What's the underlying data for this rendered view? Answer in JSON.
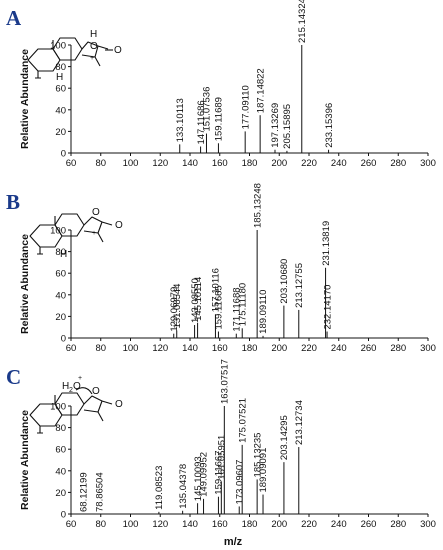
{
  "chart_data": [
    {
      "type": "bar",
      "panel": "A",
      "ylabel": "Relative Abundance",
      "xlim": [
        60,
        300
      ],
      "ylim": [
        0,
        100
      ],
      "x_ticks": [
        60,
        80,
        100,
        120,
        140,
        160,
        180,
        200,
        220,
        240,
        260,
        280,
        300
      ],
      "y_ticks": [
        0,
        20,
        40,
        60,
        80,
        100
      ],
      "peaks": [
        {
          "mz": 133.10113,
          "intensity": 8,
          "label": "133.10113"
        },
        {
          "mz": 147.11686,
          "intensity": 6,
          "label": "147.11686"
        },
        {
          "mz": 151.07536,
          "intensity": 18,
          "label": "151.07536"
        },
        {
          "mz": 159.11689,
          "intensity": 9,
          "label": "159.11689"
        },
        {
          "mz": 177.0911,
          "intensity": 20,
          "label": "177.09110"
        },
        {
          "mz": 187.14822,
          "intensity": 35,
          "label": "187.14822"
        },
        {
          "mz": 197.13269,
          "intensity": 3,
          "label": "197.13269"
        },
        {
          "mz": 205.15895,
          "intensity": 2,
          "label": "205.15895"
        },
        {
          "mz": 215.14324,
          "intensity": 100,
          "label": "215.14324"
        },
        {
          "mz": 233.15396,
          "intensity": 3,
          "label": "233.15396"
        }
      ],
      "structure": {
        "atoms": [
          "H",
          "O",
          "+",
          "O",
          "H"
        ]
      }
    },
    {
      "type": "bar",
      "panel": "B",
      "ylabel": "Relative Abundance",
      "xlim": [
        60,
        300
      ],
      "ylim": [
        0,
        100
      ],
      "x_ticks": [
        60,
        80,
        100,
        120,
        140,
        160,
        180,
        200,
        220,
        240,
        260,
        280,
        300
      ],
      "y_ticks": [
        0,
        20,
        40,
        60,
        80,
        100
      ],
      "peaks": [
        {
          "mz": 129.06979,
          "intensity": 4,
          "label": "129.06979"
        },
        {
          "mz": 131.08544,
          "intensity": 7,
          "label": "131.08544"
        },
        {
          "mz": 143.0855,
          "intensity": 12,
          "label": "143.08550"
        },
        {
          "mz": 145.10114,
          "intensity": 14,
          "label": "145.10114"
        },
        {
          "mz": 157.10116,
          "intensity": 22,
          "label": "157.10116"
        },
        {
          "mz": 159.11685,
          "intensity": 6,
          "label": "159.11685"
        },
        {
          "mz": 171.11688,
          "intensity": 4,
          "label": "171.11688"
        },
        {
          "mz": 175.1118,
          "intensity": 9,
          "label": "175.11180"
        },
        {
          "mz": 185.13248,
          "intensity": 100,
          "label": "185.13248"
        },
        {
          "mz": 189.0911,
          "intensity": 2,
          "label": "189.09110"
        },
        {
          "mz": 203.1068,
          "intensity": 30,
          "label": "203.10680"
        },
        {
          "mz": 213.12755,
          "intensity": 26,
          "label": "213.12755"
        },
        {
          "mz": 231.13819,
          "intensity": 65,
          "label": "231.13819"
        },
        {
          "mz": 232.1417,
          "intensity": 6,
          "label": "232.14170"
        }
      ],
      "structure": {
        "atoms": [
          "O",
          "+",
          "O",
          "H"
        ]
      }
    },
    {
      "type": "bar",
      "panel": "C",
      "ylabel": "Relative Abundance",
      "xlabel": "m/z",
      "xlim": [
        60,
        300
      ],
      "ylim": [
        0,
        100
      ],
      "x_ticks": [
        60,
        80,
        100,
        120,
        140,
        160,
        180,
        200,
        220,
        240,
        260,
        280,
        300
      ],
      "y_ticks": [
        0,
        20,
        40,
        60,
        80,
        100
      ],
      "peaks": [
        {
          "mz": 68.12199,
          "intensity": 0,
          "label": "68.12199"
        },
        {
          "mz": 78.86504,
          "intensity": 0,
          "label": "78.86504"
        },
        {
          "mz": 119.08523,
          "intensity": 2,
          "label": "119.08523"
        },
        {
          "mz": 135.04378,
          "intensity": 3,
          "label": "135.04378"
        },
        {
          "mz": 145.10093,
          "intensity": 10,
          "label": "145.10093"
        },
        {
          "mz": 149.09952,
          "intensity": 14,
          "label": "149.09952"
        },
        {
          "mz": 159.11667,
          "intensity": 16,
          "label": "159.11667"
        },
        {
          "mz": 161.05951,
          "intensity": 30,
          "label": "161.05951"
        },
        {
          "mz": 163.07517,
          "intensity": 100,
          "label": "163.07517"
        },
        {
          "mz": 173.09607,
          "intensity": 7,
          "label": "173.09607"
        },
        {
          "mz": 175.07521,
          "intensity": 64,
          "label": "175.07521"
        },
        {
          "mz": 185.13235,
          "intensity": 32,
          "label": "185.13235"
        },
        {
          "mz": 189.09091,
          "intensity": 18,
          "label": "189.09091"
        },
        {
          "mz": 203.14295,
          "intensity": 48,
          "label": "203.14295"
        },
        {
          "mz": 213.12734,
          "intensity": 62,
          "label": "213.12734"
        }
      ],
      "structure": {
        "atoms": [
          "H",
          "2",
          "O",
          "+",
          "O",
          "O"
        ]
      }
    }
  ]
}
